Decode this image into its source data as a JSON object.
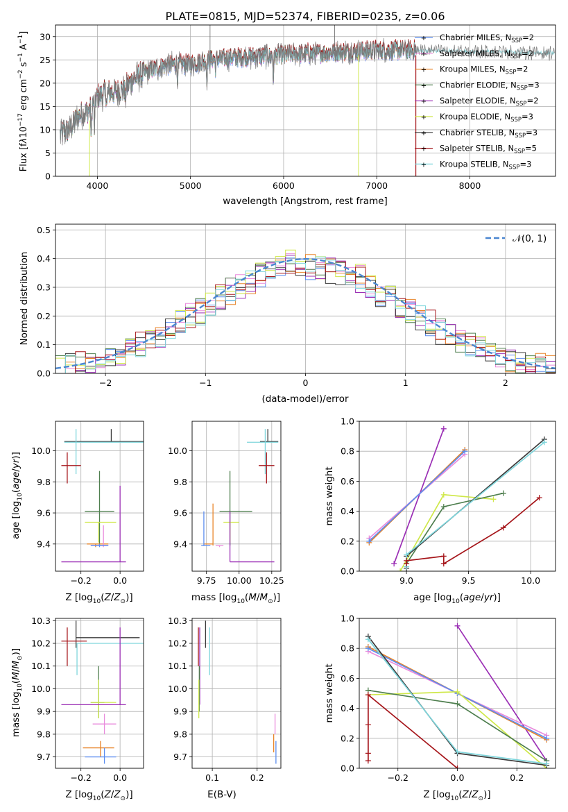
{
  "figure": {
    "title": "PLATE=0815, MJD=52374, FIBERID=0235, z=0.06"
  },
  "colors": {
    "chabrier_miles": "#5B8DEF",
    "salpeter_miles": "#E98BDC",
    "kroupa_miles": "#E8852A",
    "chabrier_elodie": "#4F7F4F",
    "salpeter_elodie": "#9B2FB5",
    "kroupa_elodie": "#CFE84A",
    "chabrier_stelib": "#3B3B3B",
    "salpeter_stelib": "#A6161B",
    "kroupa_stelib": "#7FD6DC",
    "gauss": "#4A86D0",
    "grid": "#b0b0b0"
  },
  "chart_data": [
    {
      "id": "spectrum",
      "type": "line",
      "xlabel": "wavelength [Angstrom, rest frame]",
      "xlim": [
        3550,
        8920
      ],
      "ylim": [
        0,
        32.5
      ],
      "xticks": [
        "4000",
        "5000",
        "6000",
        "7000",
        "8000"
      ],
      "yticks": [
        "0",
        "5",
        "10",
        "15",
        "20",
        "25",
        "30"
      ],
      "legend_position": "right",
      "legend": [
        {
          "label": "Chabrier MILES, N",
          "sub": "SSP",
          "eq": "=2",
          "color_key": "chabrier_miles"
        },
        {
          "label": "Salpeter MILES, N",
          "sub": "SSP",
          "eq": "=2",
          "color_key": "salpeter_miles"
        },
        {
          "label": "Kroupa MILES, N",
          "sub": "SSP",
          "eq": "=2",
          "color_key": "kroupa_miles"
        },
        {
          "label": "Chabrier ELODIE, N",
          "sub": "SSP",
          "eq": "=3",
          "color_key": "chabrier_elodie"
        },
        {
          "label": "Salpeter ELODIE, N",
          "sub": "SSP",
          "eq": "=2",
          "color_key": "salpeter_elodie"
        },
        {
          "label": "Kroupa ELODIE, N",
          "sub": "SSP",
          "eq": "=3",
          "color_key": "kroupa_elodie"
        },
        {
          "label": "Chabrier STELIB, N",
          "sub": "SSP",
          "eq": "=3",
          "color_key": "chabrier_stelib"
        },
        {
          "label": "Salpeter STELIB, N",
          "sub": "SSP",
          "eq": "=5",
          "color_key": "salpeter_stelib"
        },
        {
          "label": "Kroupa STELIB, N",
          "sub": "SSP",
          "eq": "=3",
          "color_key": "kroupa_stelib"
        }
      ],
      "continuum": [
        [
          3600,
          9
        ],
        [
          3700,
          10
        ],
        [
          3800,
          13
        ],
        [
          3900,
          14
        ],
        [
          4000,
          17
        ],
        [
          4100,
          18
        ],
        [
          4200,
          18
        ],
        [
          4300,
          19
        ],
        [
          4400,
          21
        ],
        [
          4500,
          22
        ],
        [
          4600,
          23
        ],
        [
          4800,
          24
        ],
        [
          5000,
          24
        ],
        [
          5200,
          25
        ],
        [
          5500,
          25.5
        ],
        [
          6000,
          26
        ],
        [
          6500,
          26.5
        ],
        [
          7000,
          27
        ],
        [
          7500,
          27
        ],
        [
          8000,
          26.8
        ],
        [
          8900,
          26.5
        ]
      ]
    },
    {
      "id": "residuals",
      "type": "line",
      "xlabel": "(data-model)/error",
      "ylabel": "Normed distribution",
      "xlim": [
        -2.5,
        2.5
      ],
      "ylim": [
        0,
        0.52
      ],
      "xticks": [
        "−2",
        "−1",
        "0",
        "1",
        "2"
      ],
      "yticks": [
        "0.0",
        "0.1",
        "0.2",
        "0.3",
        "0.4",
        "0.5"
      ],
      "legend_label": "𝒩(0, 1)",
      "bin_width": 0.1
    },
    {
      "id": "age_vs_Z",
      "type": "scatter",
      "xlabel": "Z [log",
      "ylabel": "age  [log",
      "xlim": [
        -0.33,
        0.12
      ],
      "ylim": [
        9.225,
        10.19
      ],
      "xticks": [
        "−0.2",
        "0.0"
      ],
      "yticks": [
        "9.4",
        "9.6",
        "9.8",
        "10.0"
      ],
      "points": [
        {
          "c": "chabrier_stelib",
          "x": -0.045,
          "y": 10.06,
          "xe": [
            -0.285,
            0.13
          ],
          "ye": [
            10.14,
            10.06
          ]
        },
        {
          "c": "kroupa_stelib",
          "x": -0.225,
          "y": 10.055,
          "xe": [
            -0.285,
            0.13
          ],
          "ye": [
            9.85,
            10.14
          ]
        },
        {
          "c": "salpeter_stelib",
          "x": -0.27,
          "y": 9.905,
          "xe": [
            -0.3,
            -0.2
          ],
          "ye": [
            9.79,
            9.99
          ]
        },
        {
          "c": "chabrier_elodie",
          "x": -0.105,
          "y": 9.61,
          "xe": [
            -0.18,
            -0.03
          ],
          "ye": [
            9.39,
            9.87
          ]
        },
        {
          "c": "kroupa_elodie",
          "x": -0.11,
          "y": 9.54,
          "xe": [
            -0.18,
            -0.02
          ],
          "ye": [
            9.41,
            9.54
          ]
        },
        {
          "c": "salpeter_elodie",
          "x": 0.0,
          "y": 9.285,
          "xe": [
            -0.3,
            0.03
          ],
          "ye": [
            9.285,
            9.775
          ]
        },
        {
          "c": "kroupa_miles",
          "x": -0.125,
          "y": 9.4,
          "xe": [
            -0.17,
            -0.06
          ],
          "ye": [
            9.38,
            9.4
          ]
        },
        {
          "c": "salpeter_miles",
          "x": -0.085,
          "y": 9.39,
          "xe": [
            -0.15,
            -0.06
          ],
          "ye": [
            9.38,
            9.52
          ]
        },
        {
          "c": "chabrier_miles",
          "x": -0.105,
          "y": 9.39,
          "xe": [
            -0.15,
            -0.06
          ],
          "ye": [
            9.38,
            9.4
          ]
        }
      ]
    },
    {
      "id": "age_vs_mass",
      "type": "scatter",
      "xlabel": "mass [log",
      "xlim": [
        9.64,
        10.32
      ],
      "ylim": [
        9.225,
        10.19
      ],
      "xticks": [
        "9.75",
        "10.00",
        "10.25"
      ],
      "yticks": [
        "9.4",
        "9.6",
        "9.8",
        "10.0"
      ],
      "points": [
        {
          "c": "chabrier_stelib",
          "x": 10.22,
          "y": 10.06,
          "xe": [
            10.16,
            10.3
          ],
          "ye": [
            10.14,
            10.06
          ]
        },
        {
          "c": "kroupa_stelib",
          "x": 10.2,
          "y": 10.055,
          "xe": [
            10.06,
            10.3
          ],
          "ye": [
            9.85,
            10.14
          ]
        },
        {
          "c": "salpeter_stelib",
          "x": 10.21,
          "y": 9.905,
          "xe": [
            10.15,
            10.27
          ],
          "ye": [
            9.79,
            9.99
          ]
        },
        {
          "c": "chabrier_elodie",
          "x": 9.93,
          "y": 9.61,
          "xe": [
            9.85,
            10.1
          ],
          "ye": [
            9.39,
            9.87
          ]
        },
        {
          "c": "kroupa_elodie",
          "x": 9.93,
          "y": 9.54,
          "xe": [
            9.88,
            10.0
          ],
          "ye": [
            9.41,
            9.54
          ]
        },
        {
          "c": "salpeter_elodie",
          "x": 9.93,
          "y": 9.285,
          "xe": [
            9.93,
            10.27
          ],
          "ye": [
            9.285,
            9.61
          ]
        },
        {
          "c": "kroupa_miles",
          "x": 9.8,
          "y": 9.4,
          "xe": [
            9.73,
            9.8
          ],
          "ye": [
            9.39,
            9.66
          ]
        },
        {
          "c": "salpeter_miles",
          "x": 9.85,
          "y": 9.39,
          "xe": [
            9.82,
            9.88
          ],
          "ye": [
            9.38,
            9.39
          ]
        },
        {
          "c": "chabrier_miles",
          "x": 9.73,
          "y": 9.39,
          "xe": [
            9.71,
            9.78
          ],
          "ye": [
            9.39,
            9.61
          ]
        }
      ]
    },
    {
      "id": "weight_vs_age",
      "type": "line",
      "xlabel": "age  [log",
      "ylabel": "mass weight",
      "xlim": [
        8.62,
        10.2
      ],
      "ylim": [
        0,
        1.0
      ],
      "xticks": [
        "9.0",
        "9.5",
        "10.0"
      ],
      "yticks": [
        "0.0",
        "0.2",
        "0.4",
        "0.6",
        "0.8",
        "1.0"
      ],
      "series": [
        {
          "c": "salpeter_elodie",
          "x": [
            8.9,
            9.3
          ],
          "y": [
            0.05,
            0.95
          ]
        },
        {
          "c": "kroupa_miles",
          "x": [
            8.7,
            9.47
          ],
          "y": [
            0.19,
            0.81
          ]
        },
        {
          "c": "salpeter_miles",
          "x": [
            8.7,
            9.47
          ],
          "y": [
            0.22,
            0.78
          ]
        },
        {
          "c": "chabrier_miles",
          "x": [
            8.7,
            9.47
          ],
          "y": [
            0.2,
            0.8
          ]
        },
        {
          "c": "kroupa_elodie",
          "x": [
            8.95,
            9.3,
            9.7
          ],
          "y": [
            0.0,
            0.51,
            0.48
          ]
        },
        {
          "c": "chabrier_elodie",
          "x": [
            9.0,
            9.3,
            9.78
          ],
          "y": [
            0.05,
            0.43,
            0.52
          ]
        },
        {
          "c": "chabrier_stelib",
          "x": [
            9.0,
            9.0,
            10.11
          ],
          "y": [
            0.02,
            0.1,
            0.88
          ]
        },
        {
          "c": "kroupa_stelib",
          "x": [
            9.0,
            9.0,
            10.11
          ],
          "y": [
            0.03,
            0.11,
            0.86
          ]
        },
        {
          "c": "salpeter_stelib",
          "x": [
            9.0,
            9.0,
            9.3,
            9.3,
            9.78,
            10.07
          ],
          "y": [
            0.05,
            0.07,
            0.1,
            0.05,
            0.29,
            0.49
          ]
        }
      ]
    },
    {
      "id": "mass_vs_Z",
      "type": "scatter",
      "xlabel": "Z [log",
      "ylabel": "mass [log",
      "xlim": [
        -0.33,
        0.12
      ],
      "ylim": [
        9.65,
        10.31
      ],
      "xticks": [
        "−0.2",
        "0.0"
      ],
      "yticks": [
        "9.7",
        "9.8",
        "9.9",
        "10.0",
        "10.1",
        "10.2",
        "10.3"
      ],
      "points": [
        {
          "c": "chabrier_stelib",
          "x": -0.225,
          "y": 10.225,
          "xe": [
            -0.225,
            0.1
          ],
          "ye": [
            10.18,
            10.3
          ]
        },
        {
          "c": "kroupa_stelib",
          "x": -0.22,
          "y": 10.2,
          "xe": [
            -0.22,
            0.13
          ],
          "ye": [
            10.06,
            10.2
          ]
        },
        {
          "c": "salpeter_stelib",
          "x": -0.27,
          "y": 10.21,
          "xe": [
            -0.3,
            -0.17
          ],
          "ye": [
            10.1,
            10.27
          ]
        },
        {
          "c": "chabrier_elodie",
          "x": -0.11,
          "y": 9.94,
          "xe": [
            -0.15,
            -0.08
          ],
          "ye": [
            9.87,
            10.1
          ]
        },
        {
          "c": "kroupa_elodie",
          "x": -0.11,
          "y": 9.94,
          "xe": [
            -0.15,
            -0.02
          ],
          "ye": [
            9.87,
            10.04
          ]
        },
        {
          "c": "salpeter_elodie",
          "x": 0.0,
          "y": 9.93,
          "xe": [
            -0.3,
            0.03
          ],
          "ye": [
            9.93,
            10.27
          ]
        },
        {
          "c": "salpeter_miles",
          "x": -0.08,
          "y": 9.845,
          "xe": [
            -0.14,
            -0.02
          ],
          "ye": [
            9.8,
            9.89
          ]
        },
        {
          "c": "kroupa_miles",
          "x": -0.1,
          "y": 9.74,
          "xe": [
            -0.19,
            -0.03
          ],
          "ye": [
            9.7,
            9.77
          ]
        },
        {
          "c": "chabrier_miles",
          "x": -0.08,
          "y": 9.7,
          "xe": [
            -0.18,
            -0.02
          ],
          "ye": [
            9.67,
            9.74
          ]
        }
      ]
    },
    {
      "id": "mass_vs_ebv",
      "type": "scatter",
      "xlabel": "E(B-V)",
      "xlim": [
        0.055,
        0.253
      ],
      "ylim": [
        9.65,
        10.31
      ],
      "xticks": [
        "0.1",
        "0.2"
      ],
      "yticks": [
        "9.7",
        "9.8",
        "9.9",
        "10.0",
        "10.1",
        "10.2",
        "10.3"
      ],
      "points": [
        {
          "c": "chabrier_stelib",
          "x": 0.085,
          "ye": [
            10.18,
            10.3
          ]
        },
        {
          "c": "kroupa_stelib",
          "x": 0.094,
          "ye": [
            10.06,
            10.27
          ]
        },
        {
          "c": "salpeter_stelib",
          "x": 0.069,
          "ye": [
            10.1,
            10.27
          ]
        },
        {
          "c": "salpeter_elodie",
          "x": 0.072,
          "ye": [
            9.93,
            10.27
          ]
        },
        {
          "c": "chabrier_elodie",
          "x": 0.071,
          "ye": [
            9.9,
            10.1
          ]
        },
        {
          "c": "kroupa_elodie",
          "x": 0.07,
          "ye": [
            9.87,
            10.04
          ]
        },
        {
          "c": "salpeter_miles",
          "x": 0.24,
          "ye": [
            9.8,
            9.89
          ]
        },
        {
          "c": "kroupa_miles",
          "x": 0.237,
          "ye": [
            9.72,
            9.8
          ]
        },
        {
          "c": "chabrier_miles",
          "x": 0.242,
          "ye": [
            9.67,
            9.77
          ]
        }
      ]
    },
    {
      "id": "weight_vs_Z",
      "type": "line",
      "xlabel": "Z [log",
      "ylabel": "mass weight",
      "xlim": [
        -0.33,
        0.33
      ],
      "ylim": [
        0,
        1.0
      ],
      "xticks": [
        "−0.2",
        "0.0",
        "0.2"
      ],
      "yticks": [
        "0.0",
        "0.2",
        "0.4",
        "0.6",
        "0.8",
        "1.0"
      ],
      "series": [
        {
          "c": "salpeter_elodie",
          "x": [
            0.0,
            0.3
          ],
          "y": [
            0.95,
            0.05
          ]
        },
        {
          "c": "kroupa_miles",
          "x": [
            -0.3,
            0.0,
            0.3
          ],
          "y": [
            0.81,
            0.5,
            0.19
          ]
        },
        {
          "c": "salpeter_miles",
          "x": [
            -0.3,
            0.0,
            0.3
          ],
          "y": [
            0.78,
            0.5,
            0.22
          ]
        },
        {
          "c": "chabrier_miles",
          "x": [
            -0.3,
            0.0,
            0.3
          ],
          "y": [
            0.8,
            0.5,
            0.2
          ]
        },
        {
          "c": "kroupa_elodie",
          "x": [
            -0.3,
            0.0,
            0.3
          ],
          "y": [
            0.49,
            0.51,
            0.0
          ]
        },
        {
          "c": "chabrier_elodie",
          "x": [
            -0.3,
            0.0,
            0.3
          ],
          "y": [
            0.52,
            0.43,
            0.05
          ]
        },
        {
          "c": "chabrier_stelib",
          "x": [
            -0.3,
            0.0,
            0.3
          ],
          "y": [
            0.88,
            0.1,
            0.02
          ]
        },
        {
          "c": "kroupa_stelib",
          "x": [
            -0.3,
            0.0,
            0.3
          ],
          "y": [
            0.86,
            0.11,
            0.03
          ]
        },
        {
          "c": "salpeter_stelib",
          "x": [
            -0.3,
            -0.3,
            -0.3,
            -0.3,
            0.0
          ],
          "y": [
            0.05,
            0.1,
            0.29,
            0.49,
            0.0
          ]
        }
      ]
    }
  ]
}
